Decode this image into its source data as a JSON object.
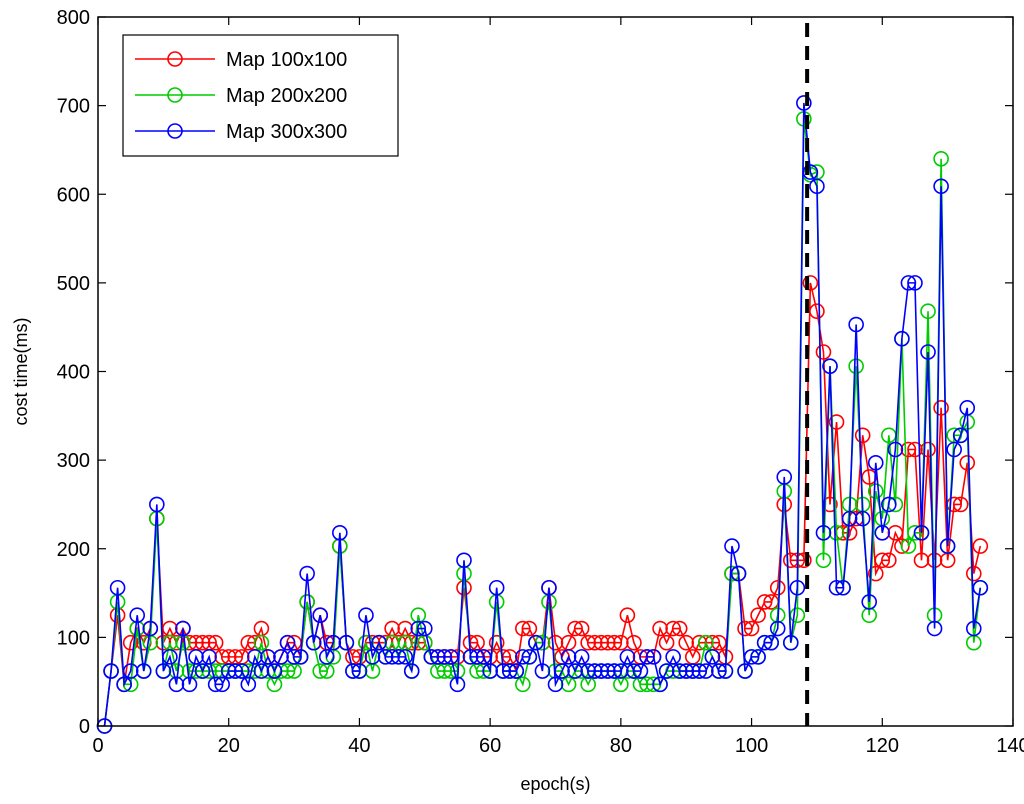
{
  "chart_data": {
    "type": "line",
    "title": "",
    "xlabel": "epoch(s)",
    "ylabel": "cost time(ms)",
    "xlim": [
      0,
      140
    ],
    "ylim": [
      0,
      800
    ],
    "xticks": [
      0,
      20,
      40,
      60,
      80,
      100,
      120,
      140
    ],
    "yticks": [
      0,
      100,
      200,
      300,
      400,
      500,
      600,
      700,
      800
    ],
    "grid": false,
    "legend_position": "top-left",
    "marker": "circle",
    "vline": {
      "x": 108.5,
      "style": "dashed",
      "color": "#000000"
    },
    "x": [
      1,
      2,
      3,
      4,
      5,
      6,
      7,
      8,
      9,
      10,
      11,
      12,
      13,
      14,
      15,
      16,
      17,
      18,
      19,
      20,
      21,
      22,
      23,
      24,
      25,
      26,
      27,
      28,
      29,
      30,
      31,
      32,
      33,
      34,
      35,
      36,
      37,
      38,
      39,
      40,
      41,
      42,
      43,
      44,
      45,
      46,
      47,
      48,
      49,
      50,
      51,
      52,
      53,
      54,
      55,
      56,
      57,
      58,
      59,
      60,
      61,
      62,
      63,
      64,
      65,
      66,
      67,
      68,
      69,
      70,
      71,
      72,
      73,
      74,
      75,
      76,
      77,
      78,
      79,
      80,
      81,
      82,
      83,
      84,
      85,
      86,
      87,
      88,
      89,
      90,
      91,
      92,
      93,
      94,
      95,
      96,
      97,
      98,
      99,
      100,
      101,
      102,
      103,
      104,
      105,
      106,
      107,
      108,
      109,
      110,
      111,
      112,
      113,
      114,
      115,
      116,
      117,
      118,
      119,
      120,
      121,
      122,
      123,
      124,
      125,
      126,
      127,
      128,
      129,
      130,
      131,
      132,
      133,
      134,
      135
    ],
    "series": [
      {
        "name": "Map 100x100",
        "color": "#ff0000",
        "values": [
          0,
          62,
          125,
          47,
          94,
          110,
          94,
          110,
          234,
          94,
          110,
          94,
          110,
          94,
          94,
          94,
          94,
          94,
          78,
          78,
          78,
          78,
          94,
          94,
          110,
          78,
          62,
          78,
          94,
          94,
          78,
          140,
          94,
          125,
          94,
          94,
          203,
          94,
          78,
          78,
          94,
          94,
          94,
          94,
          110,
          94,
          110,
          94,
          94,
          94,
          78,
          78,
          78,
          78,
          78,
          156,
          94,
          94,
          78,
          78,
          94,
          78,
          78,
          62,
          110,
          110,
          94,
          94,
          156,
          94,
          78,
          94,
          110,
          110,
          94,
          94,
          94,
          94,
          94,
          94,
          125,
          94,
          78,
          78,
          78,
          110,
          94,
          110,
          110,
          94,
          78,
          94,
          94,
          94,
          94,
          78,
          172,
          172,
          110,
          110,
          125,
          140,
          140,
          156,
          250,
          187,
          187,
          187,
          500,
          468,
          422,
          250,
          343,
          218,
          218,
          234,
          328,
          281,
          172,
          187,
          187,
          218,
          203,
          312,
          312,
          187,
          312,
          187,
          359,
          187,
          250,
          250,
          297,
          172,
          203
        ]
      },
      {
        "name": "Map 200x200",
        "color": "#00cc00",
        "values": [
          0,
          62,
          140,
          47,
          47,
          110,
          62,
          94,
          234,
          62,
          94,
          62,
          94,
          62,
          62,
          62,
          62,
          62,
          62,
          62,
          62,
          62,
          62,
          62,
          94,
          62,
          47,
          62,
          62,
          62,
          78,
          140,
          94,
          62,
          62,
          78,
          203,
          94,
          62,
          62,
          94,
          62,
          94,
          78,
          94,
          78,
          94,
          62,
          125,
          94,
          78,
          62,
          62,
          62,
          62,
          172,
          78,
          62,
          62,
          62,
          140,
          62,
          62,
          62,
          47,
          78,
          94,
          94,
          140,
          62,
          62,
          47,
          62,
          62,
          47,
          62,
          62,
          62,
          62,
          47,
          62,
          62,
          47,
          47,
          47,
          47,
          62,
          62,
          62,
          62,
          62,
          62,
          94,
          78,
          62,
          62,
          172,
          172,
          62,
          78,
          78,
          94,
          94,
          125,
          265,
          94,
          125,
          685,
          622,
          625,
          187,
          406,
          218,
          156,
          250,
          406,
          250,
          125,
          265,
          234,
          328,
          250,
          437,
          203,
          218,
          218,
          468,
          125,
          640,
          203,
          328,
          328,
          343,
          94,
          156
        ]
      },
      {
        "name": "Map 300x300",
        "color": "#0000ff",
        "values": [
          0,
          62,
          156,
          47,
          62,
          125,
          62,
          110,
          250,
          62,
          78,
          47,
          110,
          47,
          78,
          62,
          78,
          47,
          47,
          62,
          62,
          62,
          47,
          78,
          62,
          78,
          62,
          78,
          94,
          78,
          78,
          172,
          94,
          125,
          78,
          94,
          218,
          94,
          62,
          62,
          125,
          78,
          94,
          78,
          78,
          78,
          78,
          62,
          110,
          110,
          78,
          78,
          78,
          78,
          47,
          187,
          78,
          78,
          78,
          62,
          156,
          62,
          62,
          62,
          78,
          78,
          94,
          62,
          156,
          47,
          62,
          78,
          62,
          78,
          62,
          62,
          62,
          62,
          62,
          62,
          78,
          62,
          62,
          78,
          78,
          47,
          62,
          78,
          62,
          62,
          62,
          62,
          62,
          78,
          62,
          62,
          203,
          172,
          62,
          78,
          78,
          94,
          94,
          110,
          281,
          94,
          156,
          703,
          625,
          609,
          218,
          406,
          156,
          156,
          234,
          453,
          234,
          140,
          297,
          218,
          250,
          312,
          437,
          500,
          500,
          218,
          422,
          110,
          609,
          203,
          312,
          328,
          359,
          110,
          156
        ]
      }
    ]
  }
}
